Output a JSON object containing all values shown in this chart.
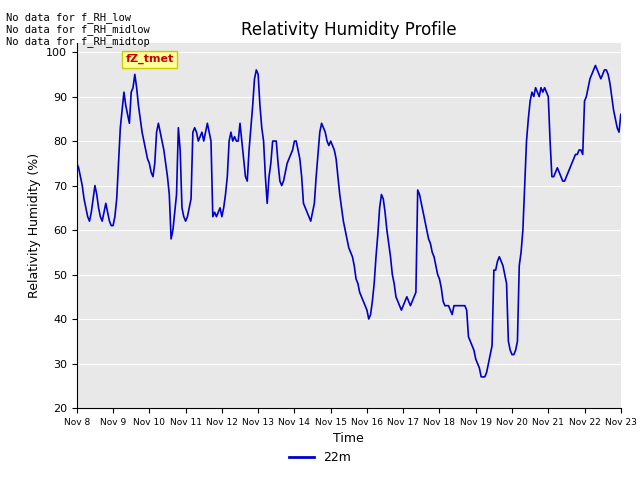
{
  "title": "Relativity Humidity Profile",
  "xlabel": "Time",
  "ylabel": "Relativity Humidity (%)",
  "ylim": [
    20,
    102
  ],
  "yticks": [
    20,
    30,
    40,
    50,
    60,
    70,
    80,
    90,
    100
  ],
  "line_color": "#0000cc",
  "line_width": 1.2,
  "legend_label": "22m",
  "plot_bg_color": "#e8e8e8",
  "fig_bg_color": "#ffffff",
  "grid_color": "#ffffff",
  "annotations": [
    "No data for f_RH_low",
    "No data for f_RH_midlow",
    "No data for f_RH_midtop"
  ],
  "annotation_box_label": "fZ_tmet",
  "annotation_box_facecolor": "#ffff99",
  "annotation_box_edgecolor": "#cccc00",
  "annotation_box_text_color": "#cc0000",
  "x_tick_labels": [
    "Nov 8",
    "Nov 9",
    "Nov 10",
    "Nov 11",
    "Nov 12",
    "Nov 13",
    "Nov 14",
    "Nov 15",
    "Nov 16",
    "Nov 17",
    "Nov 18",
    "Nov 19",
    "Nov 20",
    "Nov 21",
    "Nov 22",
    "Nov 23"
  ],
  "t": [
    0.0,
    0.05,
    0.1,
    0.15,
    0.2,
    0.25,
    0.3,
    0.35,
    0.4,
    0.45,
    0.5,
    0.55,
    0.6,
    0.65,
    0.7,
    0.75,
    0.8,
    0.85,
    0.9,
    0.95,
    1.0,
    1.05,
    1.1,
    1.15,
    1.2,
    1.25,
    1.3,
    1.35,
    1.4,
    1.45,
    1.5,
    1.55,
    1.6,
    1.65,
    1.7,
    1.75,
    1.8,
    1.85,
    1.9,
    1.95,
    2.0,
    2.05,
    2.1,
    2.15,
    2.2,
    2.25,
    2.3,
    2.35,
    2.4,
    2.45,
    2.5,
    2.55,
    2.6,
    2.65,
    2.7,
    2.75,
    2.8,
    2.85,
    2.9,
    2.95,
    3.0,
    3.05,
    3.1,
    3.15,
    3.2,
    3.25,
    3.3,
    3.35,
    3.4,
    3.45,
    3.5,
    3.55,
    3.6,
    3.65,
    3.7,
    3.75,
    3.8,
    3.85,
    3.9,
    3.95,
    4.0,
    4.05,
    4.1,
    4.15,
    4.2,
    4.25,
    4.3,
    4.35,
    4.4,
    4.45,
    4.5,
    4.55,
    4.6,
    4.65,
    4.7,
    4.75,
    4.8,
    4.85,
    4.9,
    4.95,
    5.0,
    5.05,
    5.1,
    5.15,
    5.2,
    5.25,
    5.3,
    5.35,
    5.4,
    5.45,
    5.5,
    5.55,
    5.6,
    5.65,
    5.7,
    5.75,
    5.8,
    5.85,
    5.9,
    5.95,
    6.0,
    6.05,
    6.1,
    6.15,
    6.2,
    6.25,
    6.3,
    6.35,
    6.4,
    6.45,
    6.5,
    6.55,
    6.6,
    6.65,
    6.7,
    6.75,
    6.8,
    6.85,
    6.9,
    6.95,
    7.0,
    7.05,
    7.1,
    7.15,
    7.2,
    7.25,
    7.3,
    7.35,
    7.4,
    7.45,
    7.5,
    7.55,
    7.6,
    7.65,
    7.7,
    7.75,
    7.8,
    7.85,
    7.9,
    7.95,
    8.0,
    8.05,
    8.1,
    8.15,
    8.2,
    8.25,
    8.3,
    8.35,
    8.4,
    8.45,
    8.5,
    8.55,
    8.6,
    8.65,
    8.7,
    8.75,
    8.8,
    8.85,
    8.9,
    8.95,
    9.0,
    9.05,
    9.1,
    9.15,
    9.2,
    9.25,
    9.3,
    9.35,
    9.4,
    9.45,
    9.5,
    9.55,
    9.6,
    9.65,
    9.7,
    9.75,
    9.8,
    9.85,
    9.9,
    9.95,
    10.0,
    10.05,
    10.1,
    10.15,
    10.2,
    10.25,
    10.3,
    10.35,
    10.4,
    10.45,
    10.5,
    10.55,
    10.6,
    10.65,
    10.7,
    10.75,
    10.8,
    10.85,
    10.9,
    10.95,
    11.0,
    11.05,
    11.1,
    11.15,
    11.2,
    11.25,
    11.3,
    11.35,
    11.4,
    11.45,
    11.5,
    11.55,
    11.6,
    11.65,
    11.7,
    11.75,
    11.8,
    11.85,
    11.9,
    11.95,
    12.0,
    12.05,
    12.1,
    12.15,
    12.2,
    12.25,
    12.3,
    12.35,
    12.4,
    12.45,
    12.5,
    12.55,
    12.6,
    12.65,
    12.7,
    12.75,
    12.8,
    12.85,
    12.9,
    12.95,
    13.0,
    13.05,
    13.1,
    13.15,
    13.2,
    13.25,
    13.3,
    13.35,
    13.4,
    13.45,
    13.5,
    13.55,
    13.6,
    13.65,
    13.7,
    13.75,
    13.8,
    13.85,
    13.9,
    13.95,
    14.0,
    14.05,
    14.1,
    14.15,
    14.2,
    14.25,
    14.3,
    14.35,
    14.4,
    14.45,
    14.5,
    14.55,
    14.6,
    14.65,
    14.7,
    14.75,
    14.8,
    14.85,
    14.9,
    14.95,
    15.0
  ],
  "rh": [
    75,
    74,
    72,
    70,
    67,
    65,
    63,
    62,
    64,
    67,
    70,
    68,
    65,
    63,
    62,
    64,
    66,
    64,
    62,
    61,
    61,
    63,
    67,
    75,
    83,
    87,
    91,
    88,
    86,
    84,
    91,
    92,
    95,
    92,
    88,
    85,
    82,
    80,
    78,
    76,
    75,
    73,
    72,
    75,
    82,
    84,
    82,
    80,
    78,
    75,
    72,
    68,
    58,
    60,
    64,
    68,
    83,
    78,
    65,
    63,
    62,
    63,
    65,
    67,
    82,
    83,
    82,
    80,
    81,
    82,
    80,
    82,
    84,
    82,
    80,
    63,
    64,
    63,
    64,
    65,
    63,
    65,
    68,
    72,
    80,
    82,
    80,
    81,
    80,
    80,
    84,
    80,
    76,
    72,
    71,
    78,
    83,
    88,
    94,
    96,
    95,
    88,
    83,
    80,
    72,
    66,
    72,
    75,
    80,
    80,
    80,
    75,
    71,
    70,
    71,
    73,
    75,
    76,
    77,
    78,
    80,
    80,
    78,
    76,
    72,
    66,
    65,
    64,
    63,
    62,
    64,
    66,
    72,
    77,
    82,
    84,
    83,
    82,
    80,
    79,
    80,
    79,
    78,
    76,
    72,
    68,
    65,
    62,
    60,
    58,
    56,
    55,
    54,
    52,
    49,
    48,
    46,
    45,
    44,
    43,
    42,
    40,
    41,
    44,
    48,
    54,
    59,
    65,
    68,
    67,
    64,
    60,
    57,
    54,
    50,
    48,
    45,
    44,
    43,
    42,
    43,
    44,
    45,
    44,
    43,
    44,
    45,
    46,
    69,
    68,
    66,
    64,
    62,
    60,
    58,
    57,
    55,
    54,
    52,
    50,
    49,
    47,
    44,
    43,
    43,
    43,
    42,
    41,
    43,
    43,
    43,
    43,
    43,
    43,
    43,
    42,
    36,
    35,
    34,
    33,
    31,
    30,
    29,
    27,
    27,
    27,
    28,
    30,
    32,
    34,
    51,
    51,
    53,
    54,
    53,
    52,
    50,
    48,
    35,
    33,
    32,
    32,
    33,
    35,
    52,
    55,
    60,
    70,
    80,
    85,
    89,
    91,
    90,
    92,
    91,
    90,
    92,
    91,
    92,
    91,
    90,
    80,
    72,
    72,
    73,
    74,
    73,
    72,
    71,
    71,
    72,
    73,
    74,
    75,
    76,
    77,
    77,
    78,
    78,
    77,
    89,
    90,
    92,
    94,
    95,
    96,
    97,
    96,
    95,
    94,
    95,
    96,
    96,
    95,
    93,
    90,
    87,
    85,
    83,
    82,
    86
  ]
}
